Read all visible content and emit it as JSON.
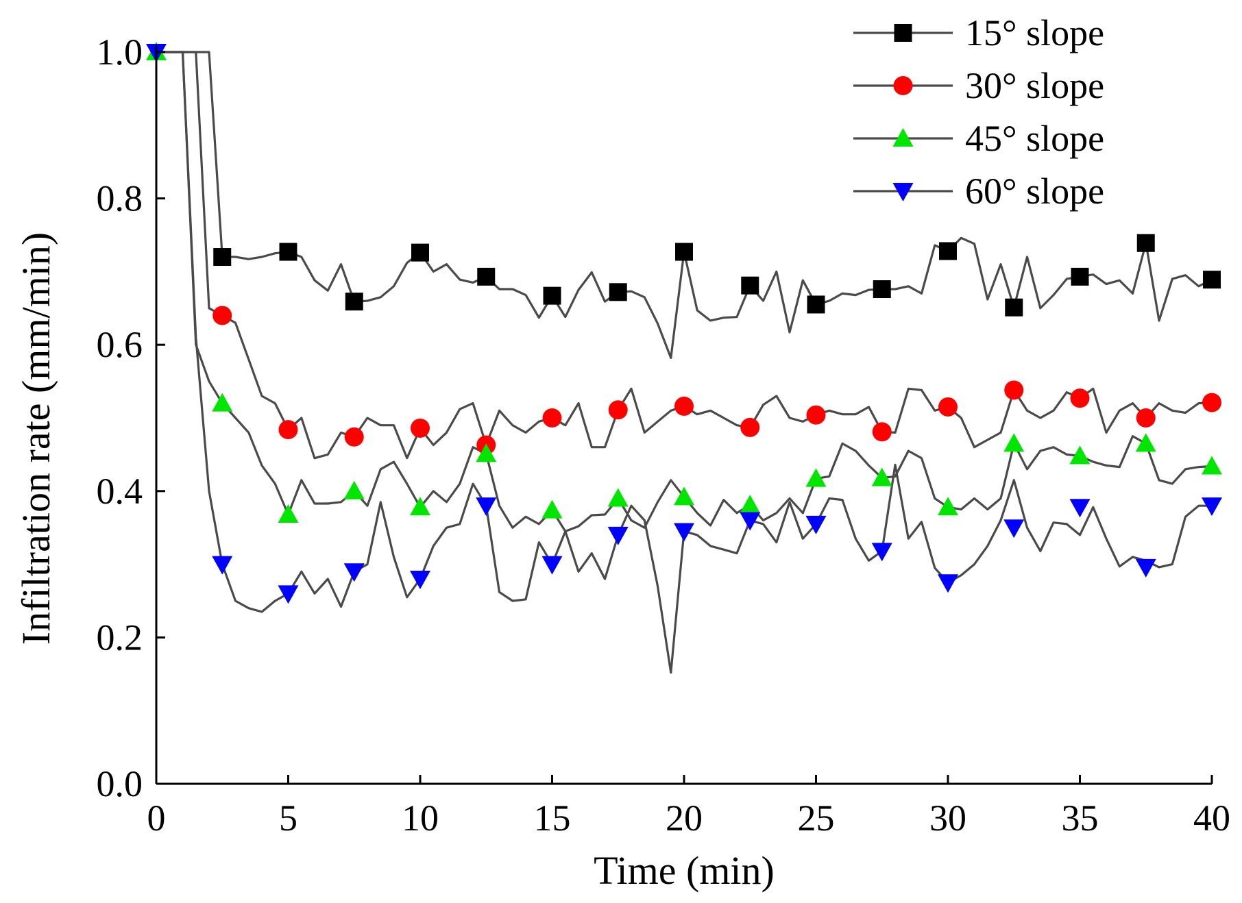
{
  "chart_data": {
    "type": "line",
    "title": "",
    "xlabel": "Time (min)",
    "ylabel": "Infiltration rate (mm/min)",
    "xlim": [
      0,
      40
    ],
    "ylim": [
      0,
      1.0
    ],
    "xticks": [
      0,
      5,
      10,
      15,
      20,
      25,
      30,
      35,
      40
    ],
    "xtick_labels": [
      "0",
      "5",
      "10",
      "15",
      "20",
      "25",
      "30",
      "35",
      "40"
    ],
    "yticks": [
      0,
      0.2,
      0.4,
      0.6,
      0.8,
      1.0
    ],
    "ytick_labels": [
      "0.0",
      "0.2",
      "0.4",
      "0.6",
      "0.8",
      "1.0"
    ],
    "legend_position": "top-right",
    "grid": false,
    "line_color": "#4a4a4a",
    "series": [
      {
        "name": "15° slope",
        "label": "15° slope",
        "marker": "square",
        "color": "#000000",
        "line_x": [
          0,
          1,
          1.5,
          2,
          2.5,
          3,
          3.5,
          4,
          4.5,
          5,
          5.5,
          6,
          6.5,
          7,
          7.5,
          8,
          8.5,
          9,
          9.5,
          10,
          10.5,
          11,
          11.5,
          12,
          12.5,
          13,
          13.5,
          14,
          14.5,
          15,
          15.5,
          16,
          16.5,
          17,
          17.5,
          18,
          18.5,
          19,
          19.5,
          20,
          20.5,
          21,
          21.5,
          22,
          22.5,
          23,
          23.5,
          24,
          24.5,
          25,
          25.5,
          26,
          26.5,
          27,
          27.5,
          28,
          28.5,
          29,
          29.5,
          30,
          30.5,
          31,
          31.5,
          32,
          32.5,
          33,
          33.5,
          34,
          34.5,
          35,
          35.5,
          36,
          36.5,
          37,
          37.5,
          38,
          38.5,
          39,
          39.5,
          40
        ],
        "line_y": [
          1.0,
          1.0,
          1.0,
          1.0,
          0.72,
          0.72,
          0.717,
          0.72,
          0.725,
          0.727,
          0.72,
          0.688,
          0.674,
          0.71,
          0.659,
          0.66,
          0.665,
          0.68,
          0.712,
          0.726,
          0.7,
          0.71,
          0.689,
          0.685,
          0.693,
          0.676,
          0.676,
          0.668,
          0.637,
          0.667,
          0.638,
          0.675,
          0.699,
          0.659,
          0.672,
          0.673,
          0.665,
          0.629,
          0.582,
          0.727,
          0.647,
          0.633,
          0.637,
          0.638,
          0.681,
          0.66,
          0.7,
          0.617,
          0.688,
          0.655,
          0.66,
          0.67,
          0.668,
          0.675,
          0.676,
          0.676,
          0.68,
          0.67,
          0.736,
          0.728,
          0.746,
          0.738,
          0.662,
          0.71,
          0.651,
          0.72,
          0.65,
          0.668,
          0.69,
          0.693,
          0.696,
          0.683,
          0.688,
          0.67,
          0.739,
          0.633,
          0.69,
          0.695,
          0.68,
          0.689
        ],
        "marker_x": [
          2.5,
          5,
          7.5,
          10,
          12.5,
          15,
          17.5,
          20,
          22.5,
          25,
          27.5,
          30,
          32.5,
          35,
          37.5,
          40
        ],
        "marker_y": [
          0.72,
          0.727,
          0.659,
          0.726,
          0.693,
          0.667,
          0.672,
          0.727,
          0.681,
          0.655,
          0.676,
          0.728,
          0.651,
          0.693,
          0.739,
          0.689
        ]
      },
      {
        "name": "30° slope",
        "label": "30° slope",
        "marker": "circle",
        "color": "#ff0000",
        "line_x": [
          0,
          1,
          1.5,
          2,
          2.5,
          3,
          3.5,
          4,
          4.5,
          5,
          5.5,
          6,
          6.5,
          7,
          7.5,
          8,
          8.5,
          9,
          9.5,
          10,
          10.5,
          11,
          11.5,
          12,
          12.5,
          13,
          13.5,
          14,
          14.5,
          15,
          15.5,
          16,
          16.5,
          17,
          17.5,
          18,
          18.5,
          19,
          19.5,
          20,
          20.5,
          21,
          21.5,
          22,
          22.5,
          23,
          23.5,
          24,
          24.5,
          25,
          25.5,
          26,
          26.5,
          27,
          27.5,
          28,
          28.5,
          29,
          29.5,
          30,
          30.5,
          31,
          31.5,
          32,
          32.5,
          33,
          33.5,
          34,
          34.5,
          35,
          35.5,
          36,
          36.5,
          37,
          37.5,
          38,
          38.5,
          39,
          39.5,
          40
        ],
        "line_y": [
          1.0,
          1.0,
          1.0,
          0.65,
          0.64,
          0.63,
          0.58,
          0.53,
          0.52,
          0.484,
          0.5,
          0.445,
          0.45,
          0.48,
          0.474,
          0.5,
          0.49,
          0.49,
          0.445,
          0.486,
          0.463,
          0.48,
          0.512,
          0.52,
          0.463,
          0.51,
          0.49,
          0.48,
          0.495,
          0.5,
          0.49,
          0.52,
          0.46,
          0.46,
          0.511,
          0.54,
          0.48,
          0.495,
          0.51,
          0.516,
          0.505,
          0.51,
          0.5,
          0.49,
          0.487,
          0.518,
          0.53,
          0.5,
          0.495,
          0.504,
          0.51,
          0.505,
          0.505,
          0.515,
          0.481,
          0.48,
          0.54,
          0.538,
          0.51,
          0.515,
          0.5,
          0.46,
          0.47,
          0.48,
          0.538,
          0.51,
          0.5,
          0.51,
          0.535,
          0.527,
          0.54,
          0.48,
          0.51,
          0.52,
          0.5,
          0.52,
          0.51,
          0.507,
          0.52,
          0.521
        ],
        "marker_x": [
          2.5,
          5,
          7.5,
          10,
          12.5,
          15,
          17.5,
          20,
          22.5,
          25,
          27.5,
          30,
          32.5,
          35,
          37.5,
          40
        ],
        "marker_y": [
          0.64,
          0.484,
          0.474,
          0.486,
          0.463,
          0.5,
          0.511,
          0.516,
          0.487,
          0.504,
          0.481,
          0.515,
          0.538,
          0.527,
          0.5,
          0.521
        ]
      },
      {
        "name": "45° slope",
        "label": "45° slope",
        "marker": "triangle-up",
        "color": "#00e600",
        "line_x": [
          0,
          1,
          1.5,
          2,
          2.5,
          3,
          3.5,
          4,
          4.5,
          5,
          5.5,
          6,
          6.5,
          7,
          7.5,
          8,
          8.5,
          9,
          9.5,
          10,
          10.5,
          11,
          11.5,
          12,
          12.5,
          13,
          13.5,
          14,
          14.5,
          15,
          15.5,
          16,
          16.5,
          17,
          17.5,
          18,
          18.5,
          19,
          19.5,
          20,
          20.5,
          21,
          21.5,
          22,
          22.5,
          23,
          23.5,
          24,
          24.5,
          25,
          25.5,
          26,
          26.5,
          27,
          27.5,
          28,
          28.5,
          29,
          29.5,
          30,
          30.5,
          31,
          31.5,
          32,
          32.5,
          33,
          33.5,
          34,
          34.5,
          35,
          35.5,
          36,
          36.5,
          37,
          37.5,
          38,
          38.5,
          39,
          39.5,
          40
        ],
        "line_y": [
          1.0,
          1.0,
          0.6,
          0.55,
          0.52,
          0.5,
          0.48,
          0.435,
          0.41,
          0.368,
          0.415,
          0.383,
          0.383,
          0.385,
          0.4,
          0.38,
          0.43,
          0.44,
          0.41,
          0.378,
          0.4,
          0.385,
          0.41,
          0.46,
          0.451,
          0.38,
          0.35,
          0.365,
          0.355,
          0.374,
          0.345,
          0.352,
          0.367,
          0.368,
          0.39,
          0.36,
          0.35,
          0.385,
          0.415,
          0.392,
          0.37,
          0.353,
          0.388,
          0.37,
          0.381,
          0.36,
          0.37,
          0.39,
          0.37,
          0.417,
          0.42,
          0.465,
          0.455,
          0.435,
          0.418,
          0.42,
          0.455,
          0.445,
          0.39,
          0.378,
          0.375,
          0.39,
          0.375,
          0.39,
          0.465,
          0.43,
          0.455,
          0.46,
          0.45,
          0.448,
          0.44,
          0.435,
          0.433,
          0.475,
          0.465,
          0.415,
          0.41,
          0.43,
          0.433,
          0.434
        ],
        "marker_x": [
          0,
          2.5,
          5,
          7.5,
          10,
          12.5,
          15,
          17.5,
          20,
          22.5,
          25,
          27.5,
          30,
          32.5,
          35,
          37.5,
          40
        ],
        "marker_y": [
          1.0,
          0.52,
          0.368,
          0.4,
          0.378,
          0.451,
          0.374,
          0.39,
          0.392,
          0.381,
          0.417,
          0.418,
          0.378,
          0.465,
          0.448,
          0.465,
          0.434
        ]
      },
      {
        "name": "60° slope",
        "label": "60° slope",
        "marker": "triangle-down",
        "color": "#0000ff",
        "line_x": [
          0,
          1,
          1.5,
          2,
          2.5,
          3,
          3.5,
          4,
          4.5,
          5,
          5.5,
          6,
          6.5,
          7,
          7.5,
          8,
          8.5,
          9,
          9.5,
          10,
          10.5,
          11,
          11.5,
          12,
          12.5,
          13,
          13.5,
          14,
          14.5,
          15,
          15.5,
          16,
          16.5,
          17,
          17.5,
          18,
          18.5,
          19,
          19.5,
          20,
          20.5,
          21,
          21.5,
          22,
          22.5,
          23,
          23.5,
          24,
          24.5,
          25,
          25.5,
          26,
          26.5,
          27,
          27.5,
          28,
          28.5,
          29,
          29.5,
          30,
          30.5,
          31,
          31.5,
          32,
          32.5,
          33,
          33.5,
          34,
          34.5,
          35,
          35.5,
          36,
          36.5,
          37,
          37.5,
          38,
          38.5,
          39,
          39.5,
          40
        ],
        "line_y": [
          1.0,
          1.0,
          0.61,
          0.4,
          0.3,
          0.25,
          0.24,
          0.235,
          0.25,
          0.26,
          0.29,
          0.26,
          0.28,
          0.242,
          0.29,
          0.3,
          0.385,
          0.31,
          0.255,
          0.28,
          0.325,
          0.35,
          0.355,
          0.41,
          0.38,
          0.262,
          0.25,
          0.252,
          0.33,
          0.3,
          0.345,
          0.29,
          0.315,
          0.28,
          0.34,
          0.38,
          0.36,
          0.27,
          0.152,
          0.345,
          0.34,
          0.325,
          0.32,
          0.315,
          0.36,
          0.355,
          0.33,
          0.385,
          0.335,
          0.355,
          0.39,
          0.388,
          0.335,
          0.305,
          0.318,
          0.436,
          0.335,
          0.358,
          0.295,
          0.275,
          0.285,
          0.3,
          0.325,
          0.36,
          0.415,
          0.35,
          0.318,
          0.357,
          0.355,
          0.34,
          0.378,
          0.335,
          0.297,
          0.31,
          0.305,
          0.296,
          0.3,
          0.365,
          0.38,
          0.38
        ],
        "marker_x": [
          0,
          2.5,
          5,
          7.5,
          10,
          12.5,
          15,
          17.5,
          20,
          22.5,
          25,
          27.5,
          30,
          32.5,
          35,
          37.5,
          40
        ],
        "marker_y": [
          1.0,
          0.3,
          0.26,
          0.29,
          0.28,
          0.38,
          0.3,
          0.34,
          0.345,
          0.36,
          0.355,
          0.318,
          0.275,
          0.35,
          0.378,
          0.296,
          0.38
        ]
      }
    ]
  }
}
